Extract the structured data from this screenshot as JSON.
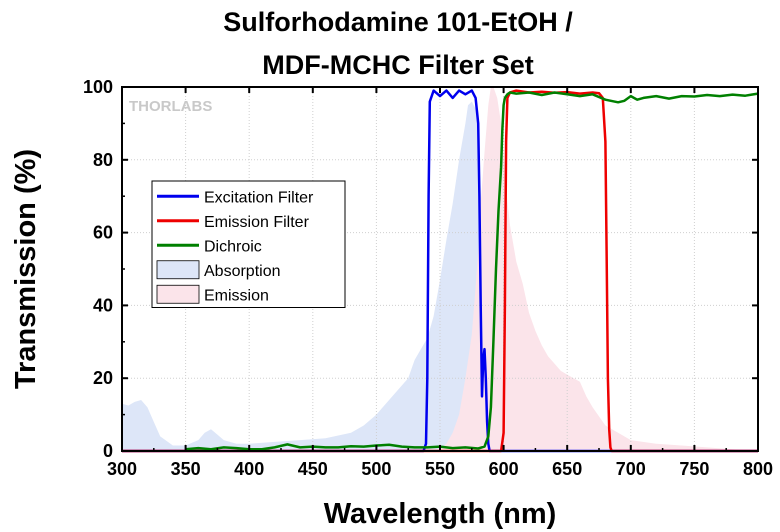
{
  "chart_data": {
    "type": "line",
    "title_lines": [
      "Sulforhodamine 101-EtOH /",
      "MDF-MCHC Filter Set"
    ],
    "xlabel": "Wavelength (nm)",
    "ylabel": "Transmission (%)",
    "xlim": [
      300,
      800
    ],
    "ylim": [
      0,
      100
    ],
    "xticks": [
      300,
      350,
      400,
      450,
      500,
      550,
      600,
      650,
      700,
      750,
      800
    ],
    "yticks": [
      0,
      20,
      40,
      60,
      80,
      100
    ],
    "grid": true,
    "legend_position": "left-middle",
    "watermark": "THORLABS",
    "series": [
      {
        "name": "Excitation Filter",
        "kind": "line",
        "color": "#0000ee",
        "x": [
          300,
          537,
          539,
          540,
          541,
          542,
          545,
          550,
          555,
          560,
          565,
          570,
          575,
          578,
          580,
          581,
          582,
          583,
          584,
          585,
          586,
          587,
          588,
          589,
          590,
          600,
          800
        ],
        "y": [
          0,
          0,
          2,
          20,
          70,
          96,
          99,
          97.5,
          99,
          97,
          99,
          98,
          99,
          97,
          90,
          70,
          40,
          15,
          25,
          28,
          20,
          8,
          2,
          0,
          0,
          0,
          0
        ]
      },
      {
        "name": "Emission Filter",
        "kind": "line",
        "color": "#ee0000",
        "x": [
          300,
          598,
          600,
          601,
          602,
          603,
          605,
          610,
          620,
          630,
          640,
          650,
          660,
          670,
          675,
          678,
          680,
          681,
          682,
          683,
          684,
          685,
          687,
          690,
          800
        ],
        "y": [
          0,
          0,
          5,
          40,
          85,
          97,
          98.5,
          99,
          98.5,
          98.7,
          98.4,
          98.6,
          98.2,
          98.5,
          98.3,
          97,
          85,
          55,
          20,
          6,
          1,
          0,
          0,
          0,
          0
        ]
      },
      {
        "name": "Dichroic",
        "kind": "line",
        "color": "#008000",
        "x": [
          350,
          360,
          370,
          380,
          390,
          400,
          410,
          420,
          430,
          440,
          450,
          460,
          470,
          480,
          490,
          500,
          510,
          520,
          530,
          540,
          550,
          560,
          570,
          580,
          585,
          588,
          590,
          592,
          594,
          596,
          598,
          599,
          600,
          601,
          602,
          603,
          605,
          610,
          620,
          630,
          640,
          650,
          660,
          670,
          680,
          690,
          695,
          700,
          705,
          710,
          720,
          730,
          740,
          750,
          760,
          770,
          780,
          790,
          795,
          800
        ],
        "y": [
          0.5,
          0.8,
          0.5,
          1.0,
          0.8,
          0.5,
          0.5,
          1.0,
          1.8,
          1.0,
          1.2,
          1.0,
          1.0,
          1.3,
          1.2,
          1.5,
          1.7,
          1.2,
          1.0,
          1.0,
          1.2,
          0.8,
          1.0,
          0.7,
          1.2,
          4,
          12,
          30,
          50,
          66,
          78,
          88,
          95,
          97,
          97.5,
          98,
          98.5,
          98.2,
          98.5,
          97.8,
          98.5,
          98,
          97.5,
          98,
          96.5,
          95.8,
          96.2,
          97.5,
          96.5,
          97,
          97.5,
          96.8,
          97.5,
          97.4,
          97.8,
          97.5,
          97.9,
          97.6,
          97.9,
          98.2
        ]
      },
      {
        "name": "Absorption",
        "kind": "area",
        "color": "#dde6f8",
        "x": [
          300,
          305,
          310,
          315,
          320,
          325,
          330,
          340,
          350,
          360,
          365,
          370,
          375,
          380,
          390,
          400,
          420,
          440,
          460,
          480,
          490,
          500,
          510,
          520,
          525,
          530,
          535,
          540,
          545,
          550,
          555,
          560,
          565,
          570,
          572,
          575,
          578,
          580,
          582,
          585,
          588,
          590,
          592,
          595,
          600
        ],
        "y": [
          13,
          12.5,
          13.5,
          14,
          12,
          8,
          4,
          1.5,
          1.5,
          3,
          5,
          6,
          4.5,
          3,
          2,
          2,
          2.5,
          3,
          3.5,
          5,
          7,
          10,
          14,
          18,
          20,
          25,
          28,
          31,
          37,
          47,
          58,
          68,
          80,
          90,
          95,
          96,
          94,
          88,
          72,
          50,
          28,
          15,
          8,
          3,
          0
        ]
      },
      {
        "name": "Emission",
        "kind": "area",
        "color": "#fbe4ea",
        "x": [
          540,
          550,
          555,
          560,
          565,
          570,
          575,
          578,
          580,
          582,
          585,
          588,
          590,
          592,
          595,
          598,
          600,
          602,
          605,
          610,
          615,
          620,
          625,
          630,
          635,
          640,
          645,
          650,
          655,
          660,
          665,
          670,
          680,
          690,
          700,
          720,
          740,
          760,
          780,
          800
        ],
        "y": [
          0,
          0.5,
          2,
          5,
          10,
          20,
          32,
          45,
          55,
          68,
          82,
          95,
          100,
          100,
          97,
          90,
          82,
          72,
          62,
          52,
          46,
          38,
          33,
          29,
          26,
          24,
          22,
          21,
          20,
          19,
          15,
          12,
          7,
          5,
          3,
          2,
          1.5,
          1,
          0.5,
          0
        ]
      }
    ]
  }
}
